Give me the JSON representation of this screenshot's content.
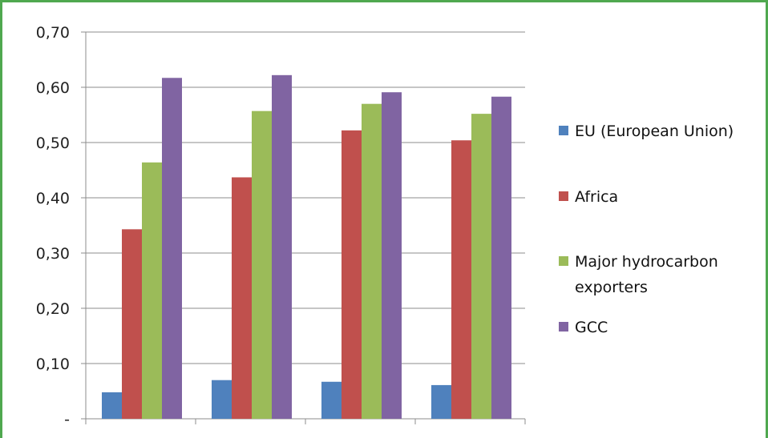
{
  "chart_data": {
    "type": "bar",
    "categories": [
      "",
      "",
      "",
      ""
    ],
    "series": [
      {
        "name": "EU (European Union)",
        "color": "#4f81bd",
        "values": [
          0.048,
          0.07,
          0.067,
          0.061
        ]
      },
      {
        "name": "Africa",
        "color": "#c0504d",
        "values": [
          0.343,
          0.437,
          0.522,
          0.504
        ]
      },
      {
        "name": "Major hydrocarbon exporters",
        "color": "#9bbb59",
        "values": [
          0.464,
          0.557,
          0.57,
          0.552
        ]
      },
      {
        "name": "GCC",
        "color": "#8064a2",
        "values": [
          0.617,
          0.622,
          0.591,
          0.583
        ]
      }
    ],
    "yticks": [
      {
        "value": 0,
        "label": "-"
      },
      {
        "value": 0.1,
        "label": "0,10"
      },
      {
        "value": 0.2,
        "label": "0,20"
      },
      {
        "value": 0.3,
        "label": "0,30"
      },
      {
        "value": 0.4,
        "label": "0,40"
      },
      {
        "value": 0.5,
        "label": "0,50"
      },
      {
        "value": 0.6,
        "label": "0,60"
      },
      {
        "value": 0.7,
        "label": "0,70"
      }
    ],
    "ylim": [
      0,
      0.7
    ],
    "grid": true,
    "legend_position": "right",
    "title": "",
    "xlabel": "",
    "ylabel": ""
  },
  "colors": {
    "frame": "#4fa84f",
    "gridline": "#8c8c8c"
  }
}
